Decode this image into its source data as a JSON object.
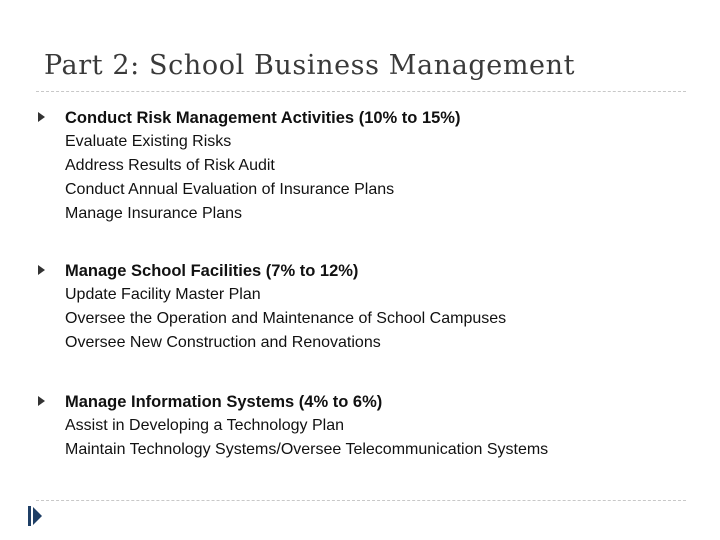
{
  "slide": {
    "title": "Part 2: School Business Management",
    "sections": [
      {
        "heading": "Conduct Risk Management Activities (10% to 15%)",
        "items": [
          "Evaluate Existing Risks",
          "Address Results of Risk Audit",
          "Conduct Annual Evaluation of Insurance Plans",
          "Manage Insurance Plans"
        ]
      },
      {
        "heading": "Manage School Facilities (7% to 12%)",
        "items": [
          "Update Facility Master Plan",
          "Oversee the Operation and Maintenance of School Campuses",
          "Oversee New Construction and Renovations"
        ]
      },
      {
        "heading": "Manage Information Systems (4% to 6%)",
        "items": [
          "Assist in Developing a Technology Plan",
          "Maintain Technology Systems/Oversee Telecommunication Systems"
        ]
      }
    ]
  },
  "icons": {
    "bullet": "triangle-bullet-icon",
    "nav": "slide-nav-icon"
  },
  "colors": {
    "title": "#3a3a3a",
    "text": "#111111",
    "rule": "#c8c8c8",
    "nav_icon": "#1f3f66"
  }
}
